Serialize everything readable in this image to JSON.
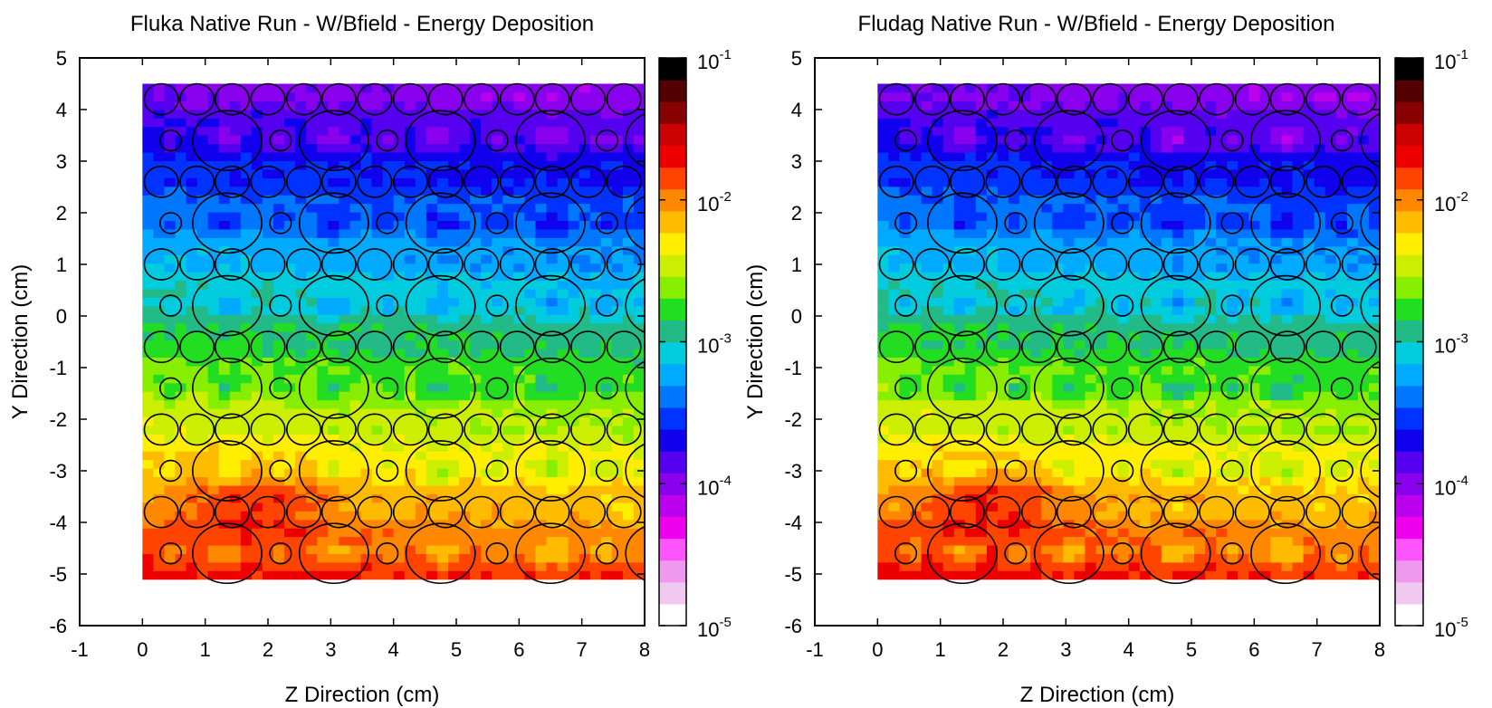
{
  "chart_data": [
    {
      "type": "heatmap",
      "title": "Fluka Native Run - W/Bfield - Energy Deposition",
      "xlabel": "Z Direction (cm)",
      "ylabel": "Y Direction (cm)",
      "xlim": [
        -1,
        8
      ],
      "ylim": [
        -6,
        5
      ],
      "x_ticks": [
        "-1",
        "0",
        "1",
        "2",
        "3",
        "4",
        "5",
        "6",
        "7",
        "8"
      ],
      "y_ticks": [
        "5",
        "4",
        "3",
        "2",
        "1",
        "0",
        "-1",
        "-2",
        "-3",
        "-4",
        "-5",
        "-6"
      ],
      "data_extent": {
        "z": [
          0,
          8
        ],
        "y": [
          -5.1,
          4.5
        ]
      },
      "colorbar": {
        "scale": "log",
        "range": [
          1e-05,
          0.1
        ],
        "tick_base": [
          "10",
          "10",
          "10",
          "10",
          "10"
        ],
        "tick_exp": [
          "-1",
          "-2",
          "-3",
          "-4",
          "-5"
        ]
      },
      "trend": "energy deposition decreases from ~1e-2 (bottom-left, y≈-3.5, z≈1.8) to ~5e-5 (top, y≈4.5)"
    },
    {
      "type": "heatmap",
      "title": "Fludag Native Run - W/Bfield - Energy Deposition",
      "xlabel": "Z Direction (cm)",
      "ylabel": "Y Direction (cm)",
      "xlim": [
        -1,
        8
      ],
      "ylim": [
        -6,
        5
      ],
      "x_ticks": [
        "-1",
        "0",
        "1",
        "2",
        "3",
        "4",
        "5",
        "6",
        "7",
        "8"
      ],
      "y_ticks": [
        "5",
        "4",
        "3",
        "2",
        "1",
        "0",
        "-1",
        "-2",
        "-3",
        "-4",
        "-5",
        "-6"
      ],
      "data_extent": {
        "z": [
          0,
          8
        ],
        "y": [
          -5.1,
          4.5
        ]
      },
      "colorbar": {
        "scale": "log",
        "range": [
          1e-05,
          0.1
        ],
        "tick_base": [
          "10",
          "10",
          "10",
          "10",
          "10"
        ],
        "tick_exp": [
          "-1",
          "-2",
          "-3",
          "-4",
          "-5"
        ]
      },
      "trend": "energy deposition decreases from ~1e-2 (bottom-left, y≈-3.5, z≈1.8) to ~5e-5 (top, y≈4.5)"
    }
  ],
  "geometry_overlay": {
    "large_ellipse_rows_y": [
      3.4,
      1.8,
      0.2,
      -1.4,
      -3.0,
      -4.6
    ],
    "large_ellipse_z": [
      1.35,
      3.05,
      4.75,
      6.5,
      8.25
    ],
    "small_circle_z": [
      0.45,
      2.2,
      3.9,
      5.65,
      7.4
    ],
    "pebble_rows_y": [
      4.2,
      2.6,
      1.0,
      -0.6,
      -2.2,
      -3.8
    ],
    "pebble_z": [
      0.3,
      0.87,
      1.43,
      2.0,
      2.57,
      3.13,
      3.7,
      4.27,
      4.83,
      5.4,
      5.97,
      6.53,
      7.1,
      7.67
    ]
  },
  "colors": {
    "palette": [
      "#ffffff",
      "#f0c8f0",
      "#ee99ee",
      "#ff55ff",
      "#ee00ee",
      "#bb00ee",
      "#8800ee",
      "#5500ee",
      "#1100ee",
      "#0033ff",
      "#0077ff",
      "#00aaff",
      "#00ccdd",
      "#22bb88",
      "#22dd22",
      "#88ee00",
      "#ccee00",
      "#ffee00",
      "#ffbb00",
      "#ff8800",
      "#ff4400",
      "#ee0000",
      "#cc0000",
      "#880000",
      "#550000",
      "#000000"
    ]
  }
}
